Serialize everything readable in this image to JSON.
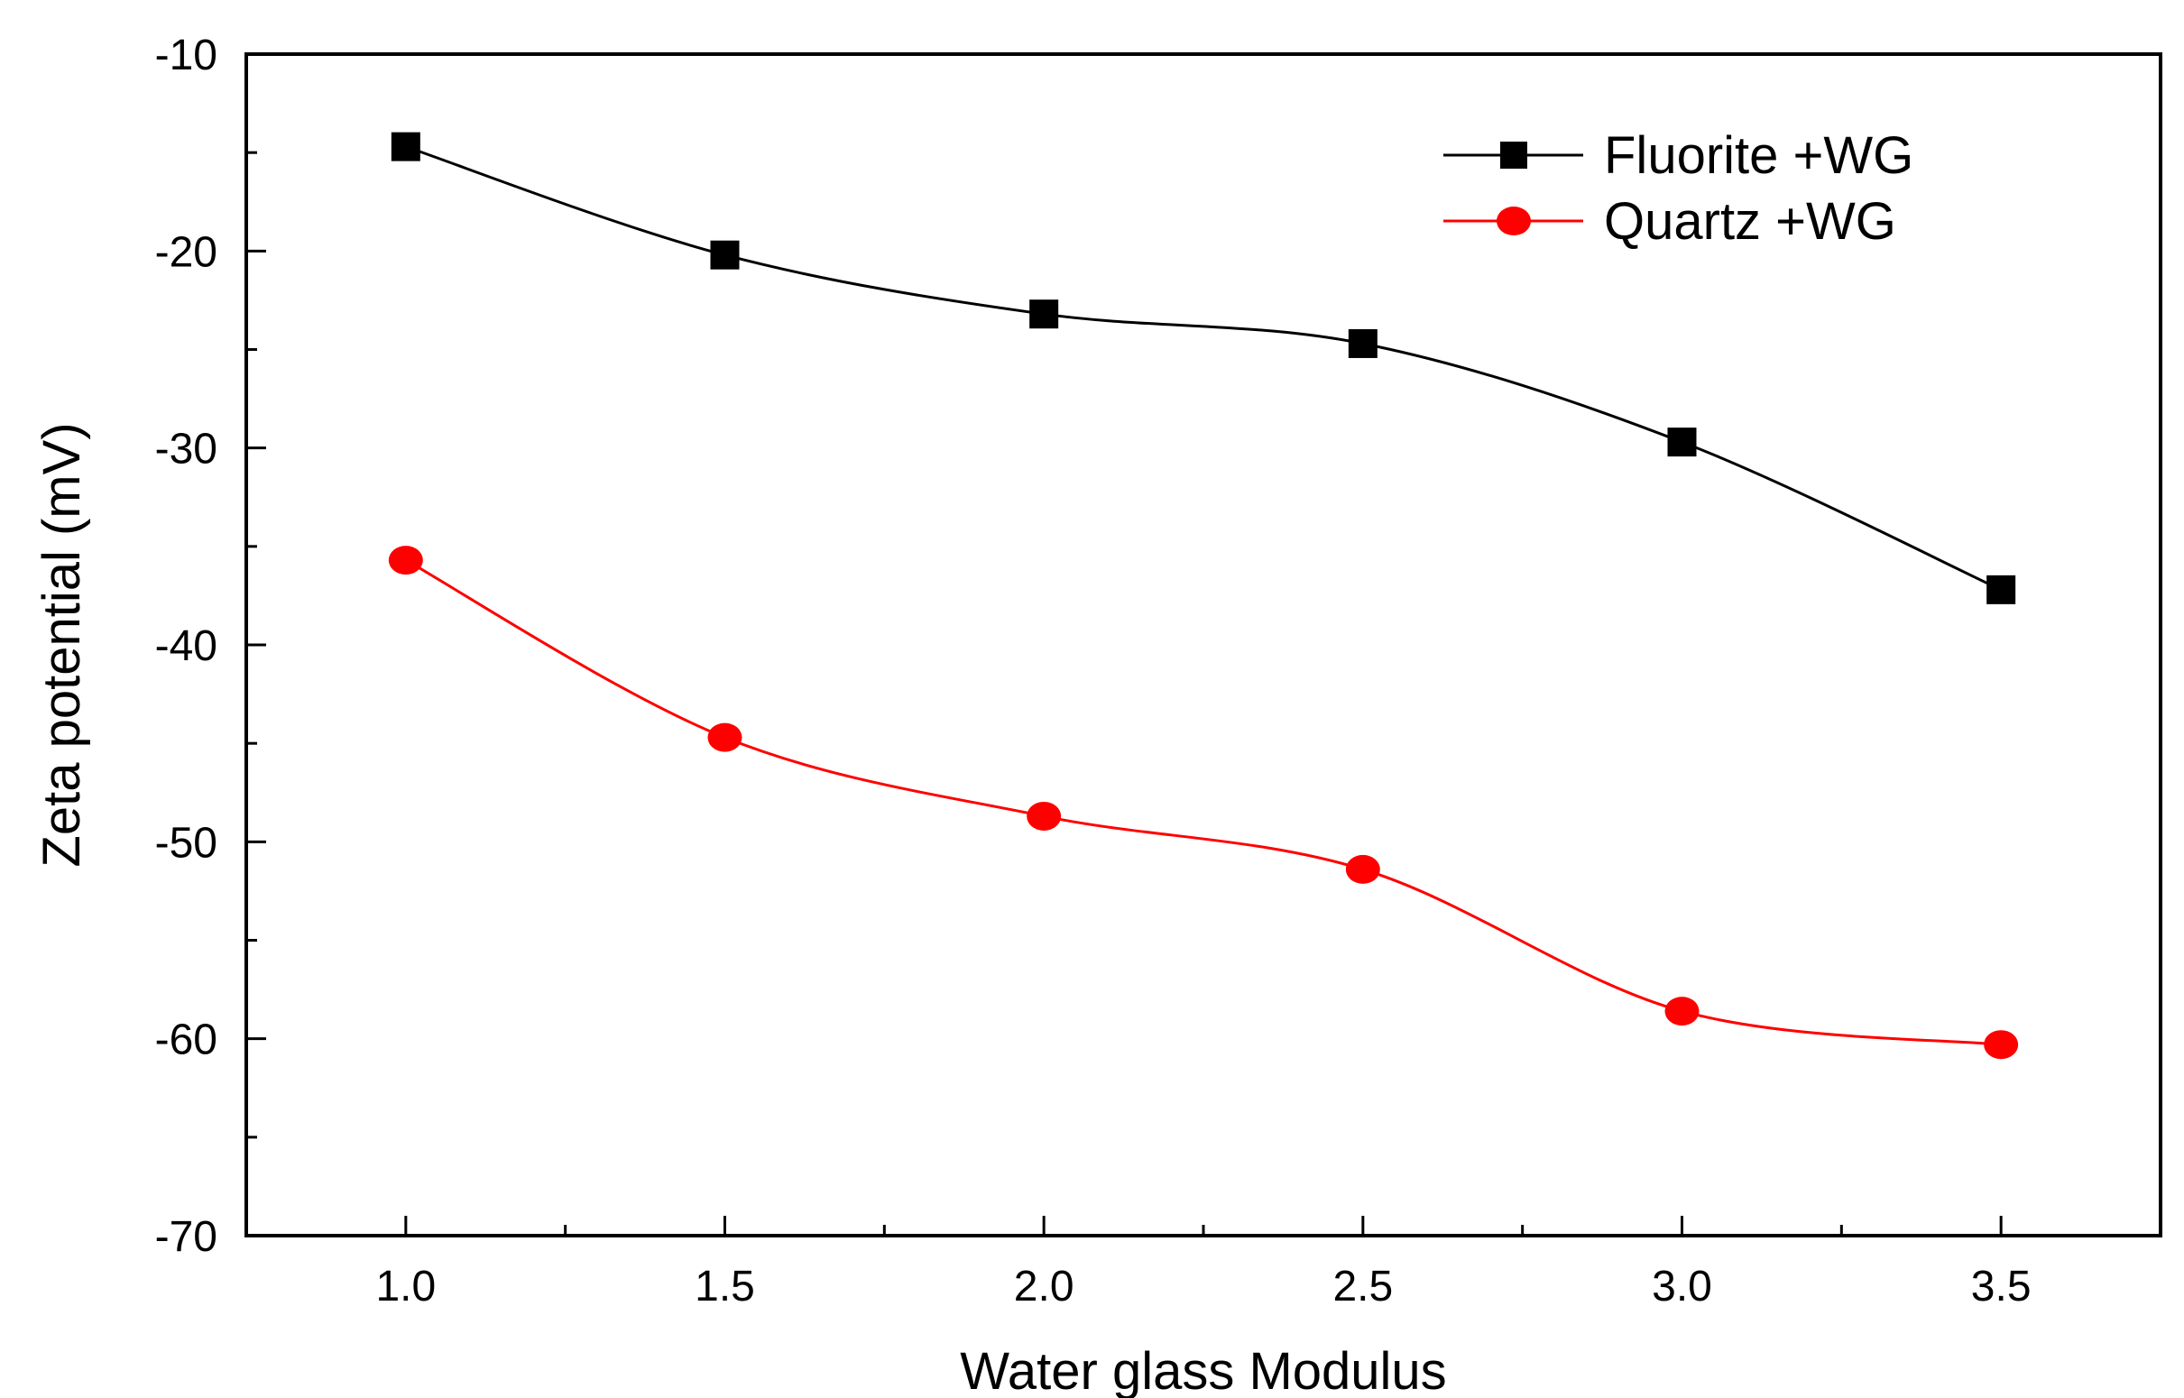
{
  "chart_data": {
    "type": "line",
    "title": "",
    "xlabel": "Water glass Modulus",
    "ylabel": "Zeta potential (mV)",
    "xlim": [
      0.75,
      3.75
    ],
    "ylim": [
      -70,
      -10
    ],
    "x": [
      1.0,
      1.5,
      2.0,
      2.5,
      3.0,
      3.5
    ],
    "xticks": [
      "1.0",
      "1.5",
      "2.0",
      "2.5",
      "3.0",
      "3.5"
    ],
    "yticks": [
      "-10",
      "-20",
      "-30",
      "-40",
      "-50",
      "-60",
      "-70"
    ],
    "grid": false,
    "legend_position": "top-right",
    "series": [
      {
        "name": "Fluorite +WG",
        "marker": "square",
        "color": "#000000",
        "values": [
          -14.7,
          -20.2,
          -23.2,
          -24.7,
          -29.7,
          -37.2
        ]
      },
      {
        "name": "Quartz +WG",
        "marker": "circle",
        "color": "#ff0000",
        "values": [
          -35.7,
          -44.7,
          -48.7,
          -51.4,
          -58.6,
          -60.3
        ]
      }
    ]
  }
}
